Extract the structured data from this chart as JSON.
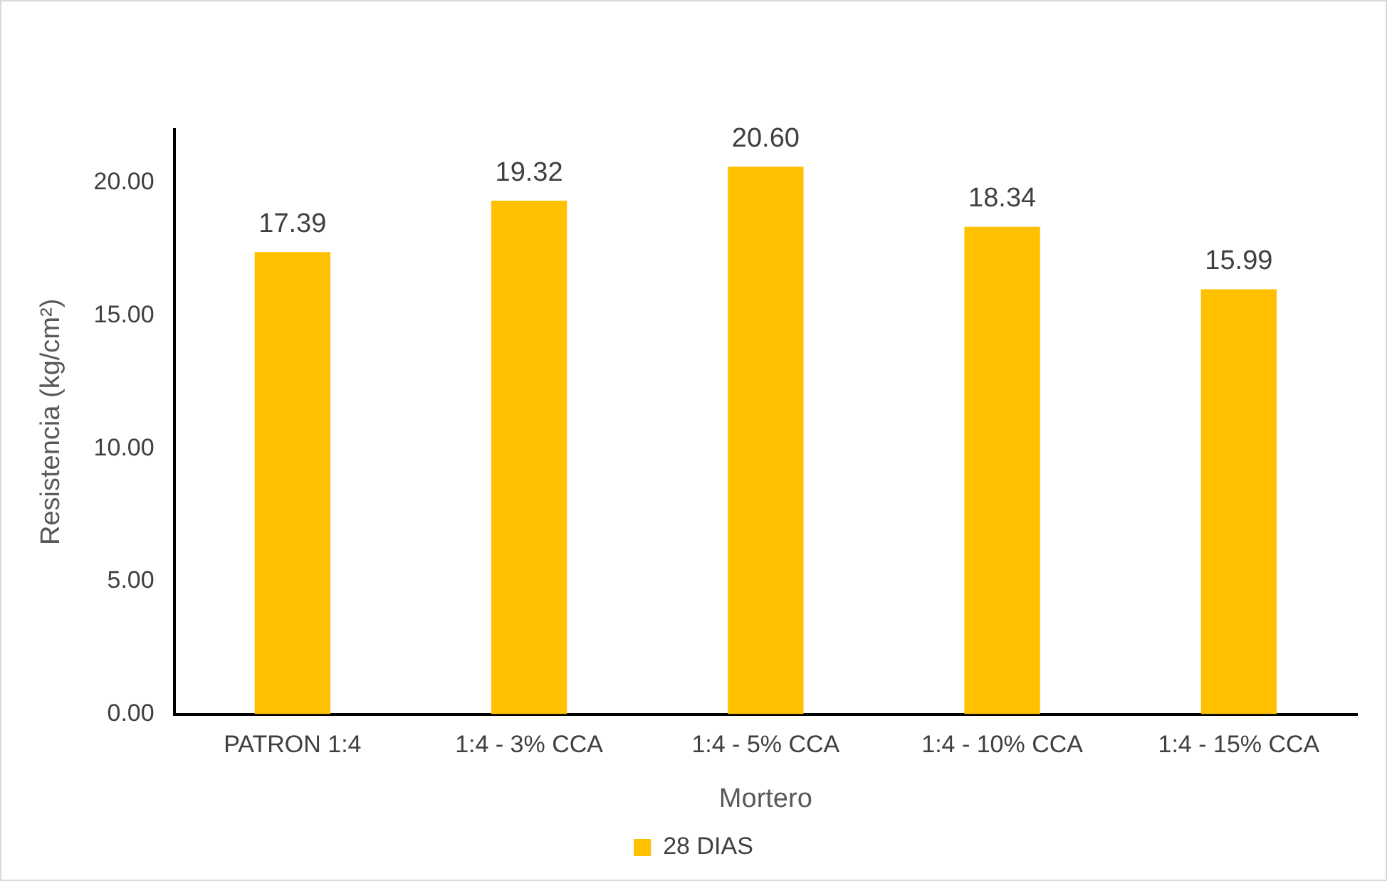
{
  "chart_data": {
    "type": "bar",
    "xlabel": "Mortero",
    "ylabel": "Resistencia (kg/cm²)",
    "categories": [
      "PATRON 1:4",
      "1:4 - 3% CCA",
      "1:4 - 5% CCA",
      "1:4 - 10% CCA",
      "1:4 - 15% CCA"
    ],
    "series": [
      {
        "name": "28 DIAS",
        "color": "#ffc000",
        "values": [
          17.39,
          19.32,
          20.6,
          18.34,
          15.99
        ],
        "value_labels": [
          "17.39",
          "19.32",
          "20.60",
          "18.34",
          "15.99"
        ]
      }
    ],
    "ylim": [
      0,
      22
    ],
    "yticks": [
      {
        "value": 0,
        "label": "0.00"
      },
      {
        "value": 5,
        "label": "5.00"
      },
      {
        "value": 10,
        "label": "10.00"
      },
      {
        "value": 15,
        "label": "15.00"
      },
      {
        "value": 20,
        "label": "20.00"
      }
    ],
    "grid": false,
    "legend": "bottom"
  }
}
